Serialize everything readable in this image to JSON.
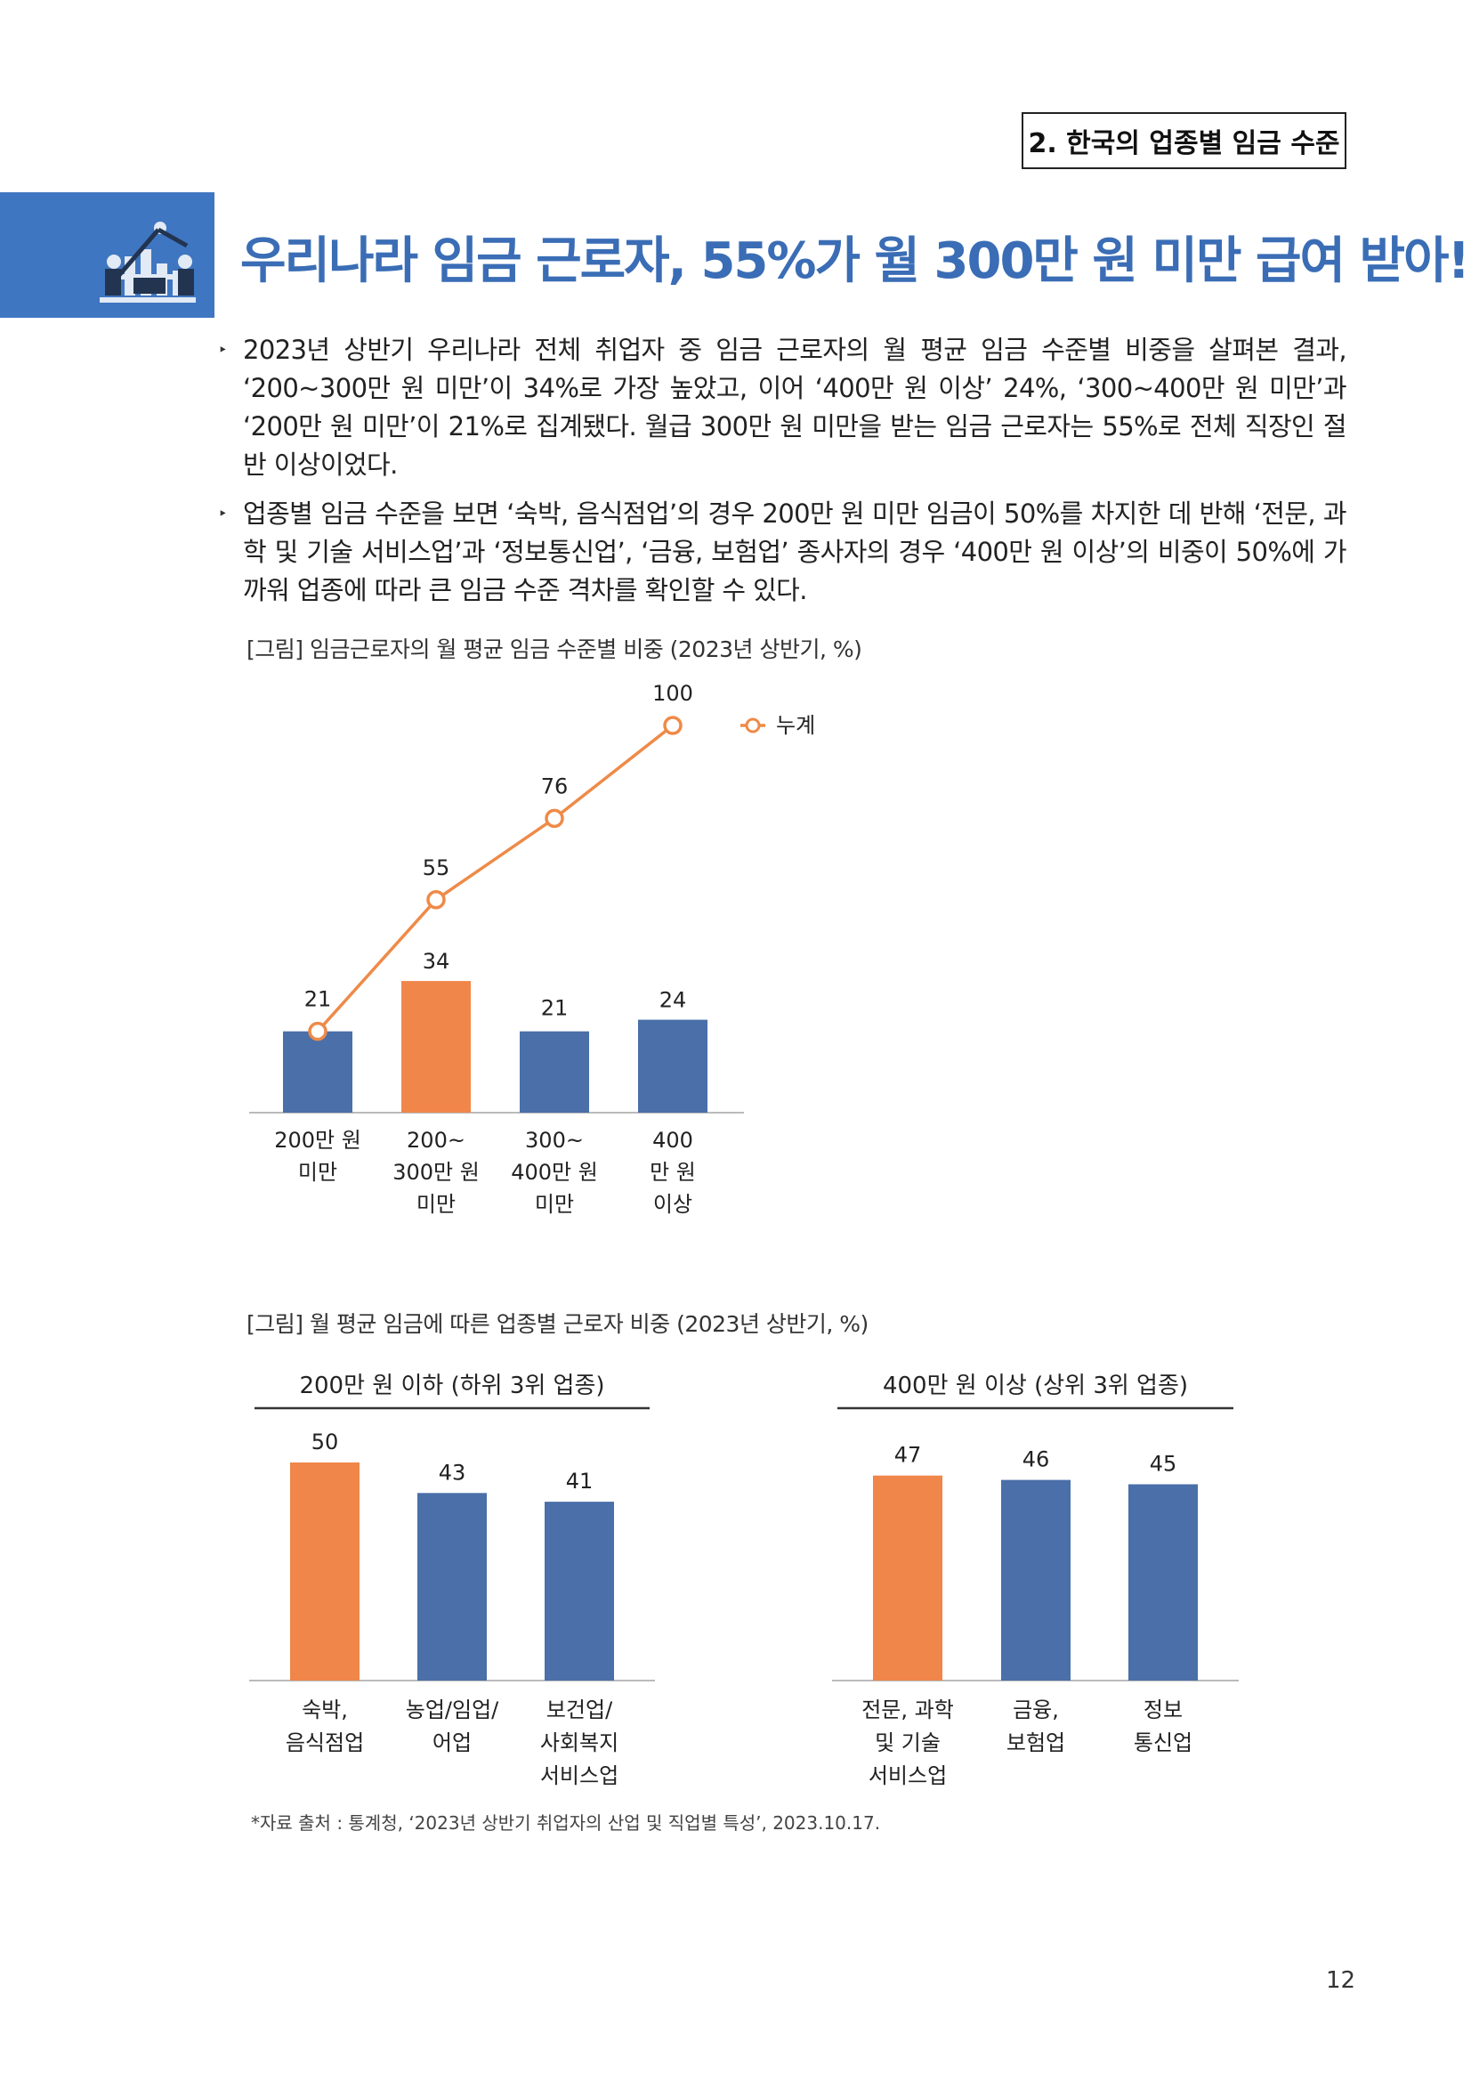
{
  "header": {
    "section_label": "2. 한국의 업종별 임금 수준",
    "headline": "우리나라 임금 근로자, 55%가 월 300만 원 미만 급여 받아!",
    "icon": "chart-person-icon",
    "accent_color": "#3f76c1",
    "headline_color": "#3a6db5"
  },
  "bullets": [
    "2023년 상반기 우리나라 전체 취업자 중 임금 근로자의 월 평균 임금 수준별 비중을 살펴본 결과, ‘200~300만 원 미만’이 34%로 가장 높았고, 이어 ‘400만 원 이상’ 24%, ‘300~400만 원 미만’과 ‘200만 원 미만’이 21%로 집계됐다. 월급 300만 원 미만을 받는 임금 근로자는 55%로 전체 직장인 절반 이상이었다.",
    "업종별 임금 수준을 보면 ‘숙박, 음식점업’의 경우 200만 원 미만 임금이 50%를 차지한 데 반해 ‘전문, 과학 및 기술 서비스업’과 ‘정보통신업’, ‘금융, 보험업’ 종사자의 경우 ‘400만 원 이상’의 비중이 50%에 가까워 업종에 따라 큰 임금 수준 격차를 확인할 수 있다."
  ],
  "figure1_caption": "[그림] 임금근로자의 월 평균 임금 수준별 비중 (2023년 상반기, %)",
  "figure2_caption": "[그림] 월 평균 임금에 따른 업종별 근로자 비중 (2023년 상반기, %)",
  "source_note": "*자료 출처 : 통계청, ‘2023년 상반기 취업자의 산업 및 직업별 특성’, 2023.10.17.",
  "page_number": "12",
  "colors": {
    "blue": "#4a6fa9",
    "orange": "#f0864a",
    "line": "#ee8a48"
  },
  "chart_data": [
    {
      "type": "bar",
      "categories": [
        [
          "200만 원",
          "미만"
        ],
        [
          "200~",
          "300만 원",
          "미만"
        ],
        [
          "300~",
          "400만 원",
          "미만"
        ],
        [
          "400",
          "만 원",
          "이상"
        ]
      ],
      "values": [
        21,
        34,
        21,
        24
      ],
      "highlight_index": 1,
      "line_series": {
        "name": "누계",
        "values": [
          21,
          55,
          76,
          100
        ]
      },
      "legend_position": "top-right",
      "ylim": [
        0,
        100
      ]
    },
    {
      "type": "bar",
      "title": "200만 원 이하 (하위 3위 업종)",
      "categories": [
        [
          "숙박,",
          "음식점업"
        ],
        [
          "농업/임업/",
          "어업"
        ],
        [
          "보건업/",
          "사회복지",
          "서비스업"
        ]
      ],
      "values": [
        50,
        43,
        41
      ],
      "highlight_index": 0,
      "ylim": [
        0,
        50
      ]
    },
    {
      "type": "bar",
      "title": "400만 원 이상 (상위 3위 업종)",
      "categories": [
        [
          "전문, 과학",
          "및 기술",
          "서비스업"
        ],
        [
          "금융,",
          "보험업"
        ],
        [
          "정보",
          "통신업"
        ]
      ],
      "values": [
        47,
        46,
        45
      ],
      "highlight_index": 0,
      "ylim": [
        0,
        50
      ]
    }
  ]
}
